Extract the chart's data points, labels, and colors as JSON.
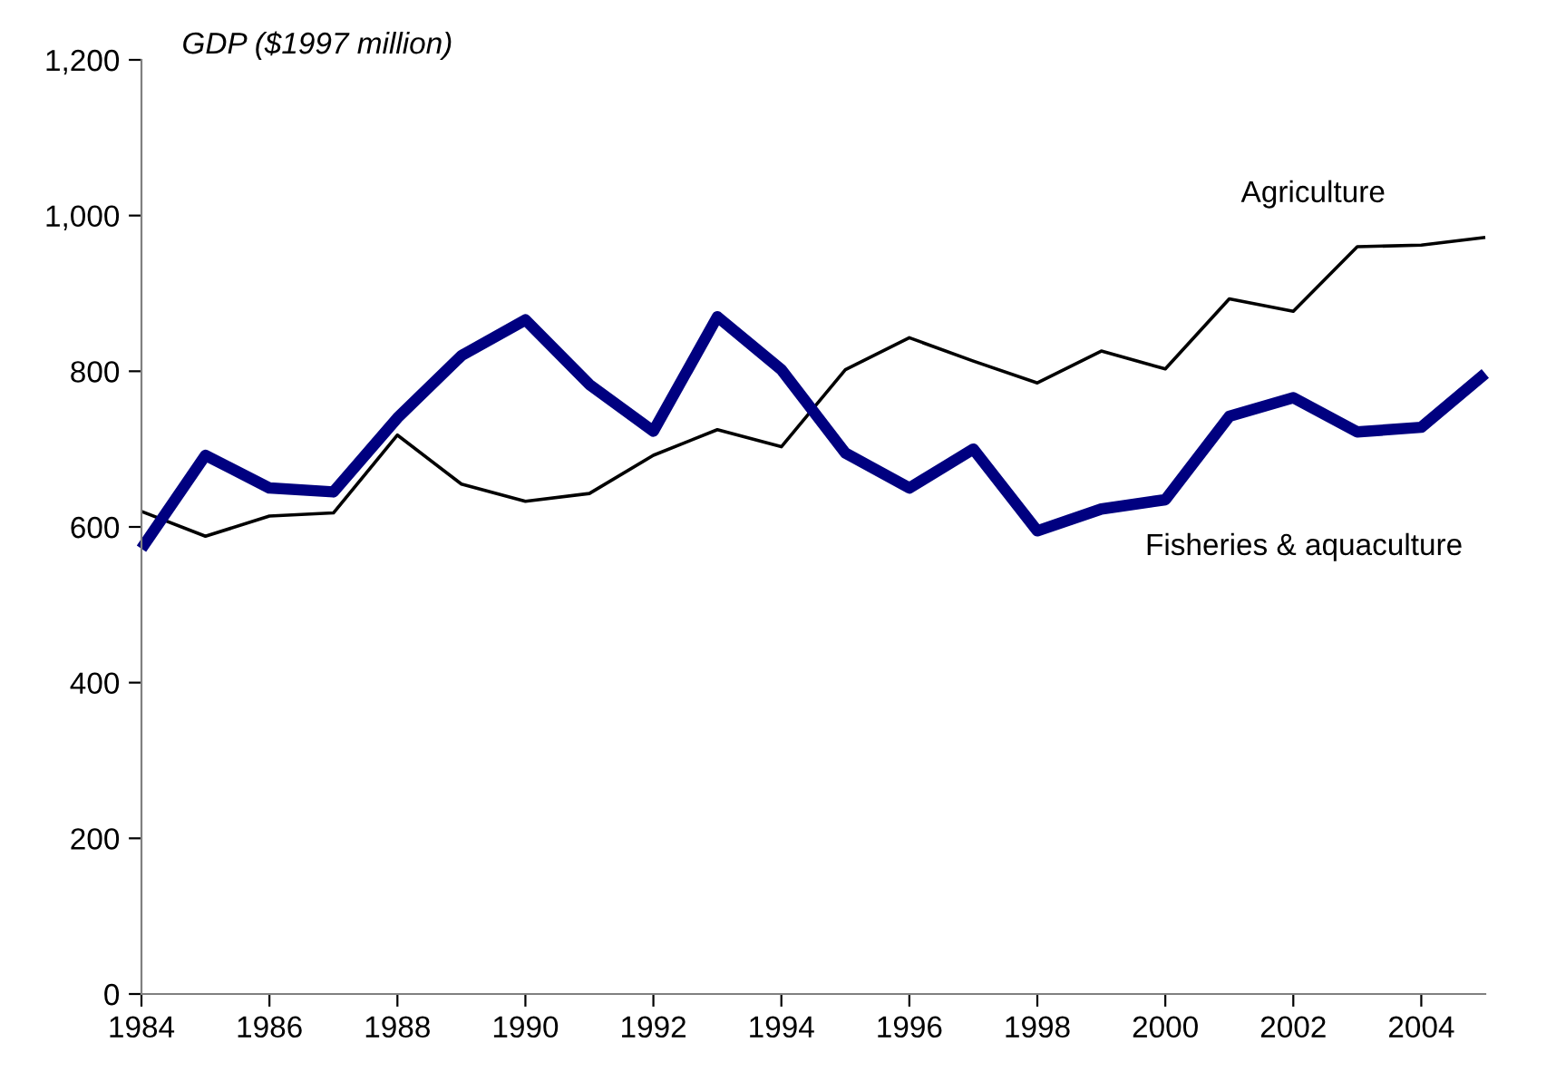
{
  "chart_data": {
    "type": "line",
    "ylabel": "GDP ($1997 million)",
    "x": [
      1984,
      1985,
      1986,
      1987,
      1988,
      1989,
      1990,
      1991,
      1992,
      1993,
      1994,
      1995,
      1996,
      1997,
      1998,
      1999,
      2000,
      2001,
      2002,
      2003,
      2004,
      2005
    ],
    "series": [
      {
        "name": "Agriculture",
        "color": "#000000",
        "values": [
          620,
          588,
          614,
          618,
          718,
          655,
          633,
          643,
          692,
          725,
          703,
          802,
          843,
          813,
          785,
          826,
          803,
          893,
          877,
          960,
          962,
          972
        ]
      },
      {
        "name": "Fisheries & aquaculture",
        "color": "#000080",
        "values": [
          572,
          692,
          650,
          645,
          740,
          820,
          866,
          783,
          723,
          870,
          802,
          695,
          650,
          700,
          595,
          623,
          635,
          742,
          766,
          722,
          728,
          797
        ]
      }
    ],
    "xlim": [
      1984,
      2005
    ],
    "xticks": [
      1984,
      1986,
      1988,
      1990,
      1992,
      1994,
      1996,
      1998,
      2000,
      2002,
      2004
    ],
    "ylim": [
      0,
      1200
    ],
    "yticks": [
      {
        "value": 0,
        "label": "0"
      },
      {
        "value": 200,
        "label": "200"
      },
      {
        "value": 400,
        "label": "400"
      },
      {
        "value": 600,
        "label": "600"
      },
      {
        "value": 800,
        "label": "800"
      },
      {
        "value": 1000,
        "label": "1,000"
      },
      {
        "value": 1200,
        "label": "1,200"
      }
    ],
    "grid": false,
    "legend": false
  }
}
